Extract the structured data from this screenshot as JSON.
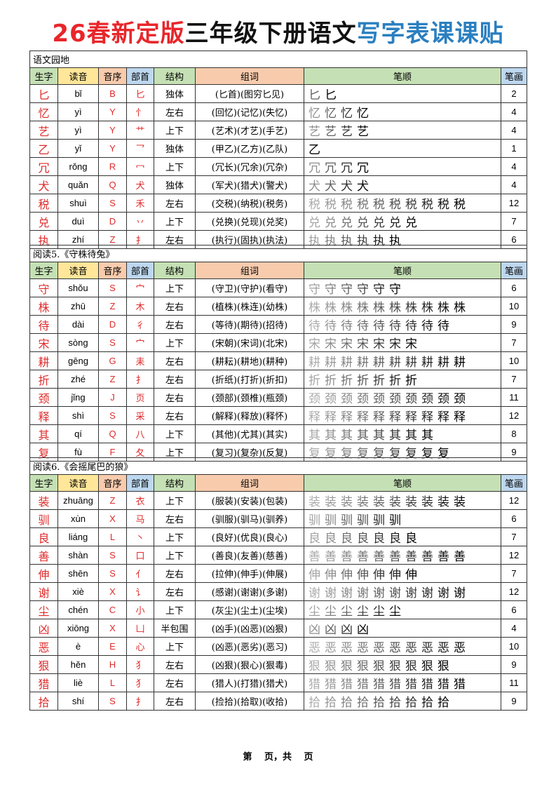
{
  "title": {
    "part1": "26春新定版",
    "part2": "三年级下册语文",
    "part3": "写字表课课贴"
  },
  "headers": [
    "生字",
    "读音",
    "音序",
    "部首",
    "结构",
    "组词",
    "笔顺",
    "笔画"
  ],
  "sections": [
    {
      "name": "语文园地",
      "rows": [
        [
          "匕",
          "bǐ",
          "B",
          "匕",
          "独体",
          "(匕首)(图穷匕见)",
          "2"
        ],
        [
          "忆",
          "yì",
          "Y",
          "忄",
          "左右",
          "(回忆)(记忆)(失忆)",
          "4"
        ],
        [
          "艺",
          "yì",
          "Y",
          "艹",
          "上下",
          "(艺术)(才艺)(手艺)",
          "4"
        ],
        [
          "乙",
          "yǐ",
          "Y",
          "乛",
          "独体",
          "(甲乙)(乙方)(乙队)",
          "1"
        ],
        [
          "冗",
          "rǒng",
          "R",
          "冖",
          "上下",
          "(冗长)(冗余)(冗杂)",
          "4"
        ],
        [
          "犬",
          "quǎn",
          "Q",
          "犬",
          "独体",
          "(军犬)(猎犬)(警犬)",
          "4"
        ],
        [
          "税",
          "shuì",
          "S",
          "禾",
          "左右",
          "(交税)(纳税)(税务)",
          "12"
        ],
        [
          "兑",
          "duì",
          "D",
          "丷",
          "上下",
          "(兑换)(兑现)(兑奖)",
          "7"
        ],
        [
          "执",
          "zhí",
          "Z",
          "扌",
          "左右",
          "(执行)(固执)(执法)",
          "6"
        ]
      ]
    },
    {
      "name": "阅读5.《守株待兔》",
      "rows": [
        [
          "守",
          "shǒu",
          "S",
          "宀",
          "上下",
          "(守卫)(守护)(看守)",
          "6"
        ],
        [
          "株",
          "zhū",
          "Z",
          "木",
          "左右",
          "(植株)(株连)(幼株)",
          "10"
        ],
        [
          "待",
          "dài",
          "D",
          "彳",
          "左右",
          "(等待)(期待)(招待)",
          "9"
        ],
        [
          "宋",
          "sòng",
          "S",
          "宀",
          "上下",
          "(宋朝)(宋词)(北宋)",
          "7"
        ],
        [
          "耕",
          "gēng",
          "G",
          "耒",
          "左右",
          "(耕耘)(耕地)(耕种)",
          "10"
        ],
        [
          "折",
          "zhé",
          "Z",
          "扌",
          "左右",
          "(折纸)(打折)(折扣)",
          "7"
        ],
        [
          "颈",
          "jǐng",
          "J",
          "页",
          "左右",
          "(颈部)(颈椎)(瓶颈)",
          "11"
        ],
        [
          "释",
          "shì",
          "S",
          "采",
          "左右",
          "(解释)(释放)(释怀)",
          "12"
        ],
        [
          "其",
          "qí",
          "Q",
          "八",
          "上下",
          "(其他)(尤其)(其实)",
          "8"
        ],
        [
          "复",
          "fù",
          "F",
          "夂",
          "上下",
          "(复习)(复杂)(反复)",
          "9"
        ]
      ]
    },
    {
      "name": "阅读6.《会摇尾巴的狼》",
      "rows": [
        [
          "装",
          "zhuāng",
          "Z",
          "衣",
          "上下",
          "(服装)(安装)(包装)",
          "12"
        ],
        [
          "驯",
          "xùn",
          "X",
          "马",
          "左右",
          "(驯服)(驯马)(驯养)",
          "6"
        ],
        [
          "良",
          "liáng",
          "L",
          "丶",
          "上下",
          "(良好)(优良)(良心)",
          "7"
        ],
        [
          "善",
          "shàn",
          "S",
          "口",
          "上下",
          "(善良)(友善)(慈善)",
          "12"
        ],
        [
          "伸",
          "shēn",
          "S",
          "亻",
          "左右",
          "(拉伸)(伸手)(伸展)",
          "7"
        ],
        [
          "谢",
          "xiè",
          "X",
          "讠",
          "左右",
          "(感谢)(谢谢)(多谢)",
          "12"
        ],
        [
          "尘",
          "chén",
          "C",
          "小",
          "上下",
          "(灰尘)(尘土)(尘埃)",
          "6"
        ],
        [
          "凶",
          "xiōng",
          "X",
          "凵",
          "半包围",
          "(凶手)(凶恶)(凶狠)",
          "4"
        ],
        [
          "恶",
          "è",
          "E",
          "心",
          "上下",
          "(凶恶)(恶劣)(恶习)",
          "10"
        ],
        [
          "狠",
          "hěn",
          "H",
          "犭",
          "左右",
          "(凶狠)(狠心)(狠毒)",
          "9"
        ],
        [
          "猎",
          "liè",
          "L",
          "犭",
          "左右",
          "(猎人)(打猎)(猎犬)",
          "11"
        ],
        [
          "拾",
          "shí",
          "S",
          "扌",
          "左右",
          "(捡拾)(拾取)(收拾)",
          "9"
        ]
      ]
    }
  ],
  "footer": "第　 页，共　 页"
}
